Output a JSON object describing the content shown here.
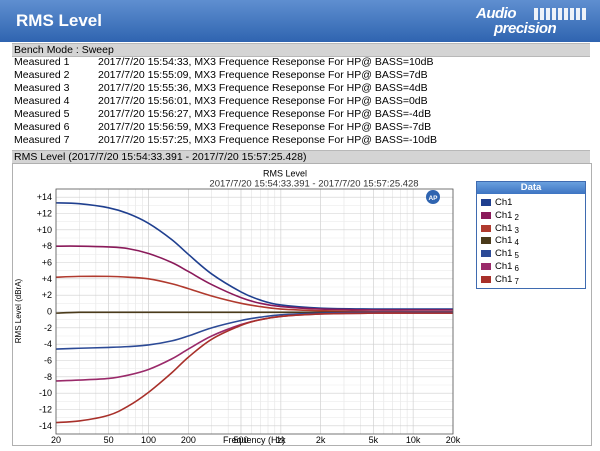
{
  "window": {
    "title": "RMS Level",
    "logo_line1": "Audio",
    "logo_line2": "precision"
  },
  "bench_mode": "Bench Mode : Sweep",
  "measurements": [
    {
      "label": "Measured 1",
      "desc": "2017/7/20 15:54:33, MX3 Frequence Reseponse For HP@ BASS=10dB"
    },
    {
      "label": "Measured 2",
      "desc": "2017/7/20 15:55:09, MX3 Frequence Reseponse For HP@ BASS=7dB"
    },
    {
      "label": "Measured 3",
      "desc": "2017/7/20 15:55:36, MX3 Frequence Reseponse For HP@ BASS=4dB"
    },
    {
      "label": "Measured 4",
      "desc": "2017/7/20 15:56:01, MX3 Frequence Reseponse For HP@ BASS=0dB"
    },
    {
      "label": "Measured 5",
      "desc": "2017/7/20 15:56:27, MX3 Frequence Reseponse For HP@ BASS=-4dB"
    },
    {
      "label": "Measured 6",
      "desc": "2017/7/20 15:56:59, MX3 Frequence Reseponse For HP@ BASS=-7dB"
    },
    {
      "label": "Measured 7",
      "desc": "2017/7/20 15:57:25, MX3 Frequence Reseponse For HP@ BASS=-10dB"
    }
  ],
  "chart_section_title": "RMS Level (2017/7/20 15:54:33.391 - 2017/7/20 15:57:25.428)",
  "chart_data": {
    "type": "line",
    "title": "RMS Level",
    "subtitle": "2017/7/20 15:54:33.391 - 2017/7/20 15:57:25.428",
    "xlabel": "Frequency (Hz)",
    "ylabel": "RMS Level (dBrA)",
    "xscale": "log",
    "xlim": [
      20,
      20000
    ],
    "ylim": [
      -15,
      15
    ],
    "grid": true,
    "legend_title": "Data",
    "legend_placement": "right",
    "xticks": [
      {
        "v": 20,
        "label": "20"
      },
      {
        "v": 50,
        "label": "50"
      },
      {
        "v": 100,
        "label": "100"
      },
      {
        "v": 200,
        "label": "200"
      },
      {
        "v": 500,
        "label": "500"
      },
      {
        "v": 1000,
        "label": "1k"
      },
      {
        "v": 2000,
        "label": "2k"
      },
      {
        "v": 5000,
        "label": "5k"
      },
      {
        "v": 10000,
        "label": "10k"
      },
      {
        "v": 20000,
        "label": "20k"
      }
    ],
    "yticks": [
      {
        "v": 14,
        "label": "+14"
      },
      {
        "v": 12,
        "label": "+12"
      },
      {
        "v": 10,
        "label": "+10"
      },
      {
        "v": 8,
        "label": "+8"
      },
      {
        "v": 6,
        "label": "+6"
      },
      {
        "v": 4,
        "label": "+4"
      },
      {
        "v": 2,
        "label": "+2"
      },
      {
        "v": 0,
        "label": "0"
      },
      {
        "v": -2,
        "label": "-2"
      },
      {
        "v": -4,
        "label": "-4"
      },
      {
        "v": -6,
        "label": "-6"
      },
      {
        "v": -8,
        "label": "-8"
      },
      {
        "v": -10,
        "label": "-10"
      },
      {
        "v": -12,
        "label": "-12"
      },
      {
        "v": -14,
        "label": "-14"
      }
    ],
    "x": [
      20,
      30,
      50,
      70,
      100,
      150,
      200,
      300,
      500,
      700,
      1000,
      2000,
      5000,
      10000,
      20000
    ],
    "series": [
      {
        "name": "Ch1",
        "sub": "",
        "color": "#1f3f8f",
        "values": [
          13.3,
          13.2,
          12.7,
          12.0,
          10.8,
          8.8,
          7.0,
          4.6,
          2.4,
          1.4,
          0.8,
          0.4,
          0.3,
          0.3,
          0.3
        ]
      },
      {
        "name": "Ch1",
        "sub": "2",
        "color": "#8a1a5a",
        "values": [
          8.0,
          8.0,
          7.9,
          7.7,
          7.1,
          6.0,
          4.9,
          3.3,
          1.7,
          1.0,
          0.6,
          0.3,
          0.2,
          0.2,
          0.2
        ]
      },
      {
        "name": "Ch1",
        "sub": "3",
        "color": "#b03a2e",
        "values": [
          4.2,
          4.3,
          4.3,
          4.2,
          4.0,
          3.4,
          2.8,
          1.9,
          1.0,
          0.6,
          0.3,
          0.1,
          0.0,
          0.0,
          0.0
        ]
      },
      {
        "name": "Ch1",
        "sub": "4",
        "color": "#4a3a1a",
        "values": [
          -0.2,
          -0.1,
          -0.1,
          -0.1,
          -0.1,
          -0.1,
          -0.1,
          -0.1,
          -0.1,
          -0.1,
          -0.1,
          -0.1,
          -0.1,
          -0.1,
          -0.1
        ]
      },
      {
        "name": "Ch1",
        "sub": "5",
        "color": "#2c4a96",
        "values": [
          -4.6,
          -4.5,
          -4.4,
          -4.3,
          -4.1,
          -3.6,
          -3.0,
          -2.0,
          -1.1,
          -0.7,
          -0.4,
          -0.2,
          -0.1,
          -0.1,
          -0.1
        ]
      },
      {
        "name": "Ch1",
        "sub": "6",
        "color": "#9a2a6a",
        "values": [
          -8.5,
          -8.4,
          -8.2,
          -7.8,
          -7.1,
          -5.8,
          -4.6,
          -3.0,
          -1.6,
          -1.0,
          -0.6,
          -0.3,
          -0.2,
          -0.2,
          -0.2
        ]
      },
      {
        "name": "Ch1",
        "sub": "7",
        "color": "#a8302a",
        "values": [
          -13.6,
          -13.4,
          -12.7,
          -11.6,
          -9.9,
          -7.5,
          -5.6,
          -3.4,
          -1.7,
          -1.0,
          -0.6,
          -0.3,
          -0.2,
          -0.2,
          -0.2
        ]
      }
    ]
  }
}
